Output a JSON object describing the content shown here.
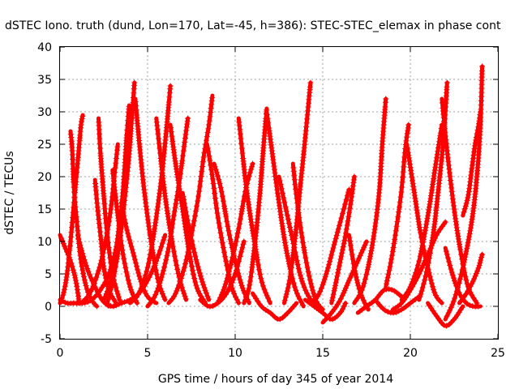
{
  "chart_data": {
    "type": "scatter",
    "title": "dSTEC Iono. truth (dund, Lon=170, Lat=-45, h=386): STEC-STEC_elemax in phase cont",
    "xlabel": "GPS time / hours of day 345 of year 2014",
    "ylabel": "dSTEC  / TECUs",
    "xlim": [
      0,
      25
    ],
    "ylim": [
      -5,
      40
    ],
    "xticks": [
      0,
      5,
      10,
      15,
      20,
      25
    ],
    "yticks": [
      -5,
      0,
      5,
      10,
      15,
      20,
      25,
      30,
      35,
      40
    ],
    "grid": true,
    "marker": "+",
    "color": "#ff0000",
    "series": [
      {
        "x": [
          0.0,
          0.3,
          0.6,
          0.9,
          1.1
        ],
        "y": [
          11.0,
          9.0,
          7.0,
          4.0,
          0.5
        ]
      },
      {
        "x": [
          0.0,
          0.2,
          0.4,
          0.6,
          0.8,
          1.0,
          1.1,
          1.2,
          1.3
        ],
        "y": [
          0.5,
          2.0,
          5.0,
          10.0,
          16.0,
          22.0,
          25.0,
          28.0,
          29.5
        ]
      },
      {
        "x": [
          0.6,
          0.7,
          0.8,
          1.0,
          1.2,
          1.5,
          1.8,
          2.1
        ],
        "y": [
          27.0,
          24.0,
          18.0,
          12.0,
          7.0,
          3.0,
          1.0,
          0.0
        ]
      },
      {
        "x": [
          0.0,
          0.4,
          0.8,
          1.3,
          1.8,
          2.3,
          2.8,
          3.2,
          3.4
        ],
        "y": [
          1.0,
          0.5,
          0.5,
          0.5,
          1.0,
          2.5,
          5.0,
          9.0,
          13.0
        ]
      },
      {
        "x": [
          1.0,
          1.3,
          1.6,
          2.0,
          2.4,
          2.8
        ],
        "y": [
          11.0,
          8.0,
          5.5,
          3.0,
          1.0,
          0.0
        ]
      },
      {
        "x": [
          2.0,
          2.15,
          2.35,
          2.5,
          2.8,
          3.2
        ],
        "y": [
          19.5,
          15.0,
          10.0,
          6.0,
          2.5,
          0.5
        ]
      },
      {
        "x": [
          2.2,
          2.3,
          2.5,
          2.7,
          3.0,
          3.4
        ],
        "y": [
          29.0,
          24.0,
          17.0,
          11.0,
          5.0,
          1.0
        ]
      },
      {
        "x": [
          1.2,
          1.7,
          2.2,
          2.6,
          2.9,
          3.1,
          3.3
        ],
        "y": [
          0.5,
          2.0,
          5.5,
          10.0,
          15.0,
          20.0,
          25.0
        ]
      },
      {
        "x": [
          2.5,
          2.9,
          3.3,
          3.6,
          3.8,
          3.95
        ],
        "y": [
          1.0,
          4.0,
          10.0,
          18.0,
          26.0,
          31.0
        ]
      },
      {
        "x": [
          3.0,
          3.3,
          3.6,
          4.0,
          4.4
        ],
        "y": [
          21.0,
          14.0,
          8.0,
          3.0,
          0.5
        ]
      },
      {
        "x": [
          2.7,
          3.1,
          3.5,
          3.9,
          4.1,
          4.25
        ],
        "y": [
          0.5,
          5.0,
          12.0,
          22.0,
          29.0,
          34.5
        ]
      },
      {
        "x": [
          2.6,
          3.0,
          3.5,
          4.0,
          4.5,
          5.0,
          5.5,
          6.0
        ],
        "y": [
          0.5,
          0.0,
          0.5,
          1.0,
          2.0,
          4.0,
          7.0,
          11.0
        ]
      },
      {
        "x": [
          3.5,
          3.8,
          4.2,
          4.6,
          5.0,
          5.5
        ],
        "y": [
          16.0,
          12.0,
          8.0,
          4.0,
          1.5,
          0.5
        ]
      },
      {
        "x": [
          4.3,
          4.5,
          4.8,
          5.2,
          5.6,
          6.0
        ],
        "y": [
          32.0,
          26.0,
          18.0,
          10.0,
          4.0,
          1.0
        ]
      },
      {
        "x": [
          4.0,
          4.5,
          5.0,
          5.4,
          5.8,
          6.1,
          6.3
        ],
        "y": [
          0.5,
          2.0,
          6.0,
          12.0,
          20.0,
          28.0,
          34.0
        ]
      },
      {
        "x": [
          5.5,
          5.7,
          6.0,
          6.4,
          6.8,
          7.2
        ],
        "y": [
          29.0,
          24.0,
          17.0,
          10.0,
          4.5,
          1.0
        ]
      },
      {
        "x": [
          5.0,
          5.4,
          5.8,
          6.2,
          6.5,
          6.8,
          7.1,
          7.3
        ],
        "y": [
          0.0,
          1.5,
          4.5,
          9.0,
          14.0,
          19.0,
          25.0,
          29.0
        ]
      },
      {
        "x": [
          6.3,
          6.6,
          7.0,
          7.4,
          7.8,
          8.3
        ],
        "y": [
          28.0,
          22.0,
          15.0,
          8.0,
          3.0,
          0.5
        ]
      },
      {
        "x": [
          6.2,
          6.6,
          7.1,
          7.5,
          7.9,
          8.2,
          8.5,
          8.7
        ],
        "y": [
          0.5,
          2.0,
          6.0,
          11.0,
          17.0,
          23.0,
          28.0,
          32.5
        ]
      },
      {
        "x": [
          7.0,
          7.3,
          7.7,
          8.1,
          8.5
        ],
        "y": [
          17.5,
          13.0,
          8.0,
          4.0,
          1.0
        ]
      },
      {
        "x": [
          8.0,
          8.5,
          9.0,
          9.5,
          10.0,
          10.5
        ],
        "y": [
          1.0,
          0.0,
          0.5,
          2.0,
          5.0,
          10.0
        ]
      },
      {
        "x": [
          8.4,
          8.7,
          9.0,
          9.4,
          9.8,
          10.2
        ],
        "y": [
          25.0,
          20.0,
          14.0,
          8.0,
          3.0,
          0.5
        ]
      },
      {
        "x": [
          8.8,
          9.2,
          9.6,
          10.0,
          10.4,
          10.8
        ],
        "y": [
          22.0,
          18.0,
          12.0,
          7.0,
          3.0,
          0.5
        ]
      },
      {
        "x": [
          9.0,
          9.4,
          9.8,
          10.2,
          10.6,
          11.0
        ],
        "y": [
          0.5,
          3.0,
          7.0,
          12.0,
          18.0,
          22.0
        ]
      },
      {
        "x": [
          10.2,
          10.4,
          10.7,
          11.1,
          11.5,
          12.0
        ],
        "y": [
          29.0,
          24.0,
          17.0,
          10.0,
          4.0,
          0.5
        ]
      },
      {
        "x": [
          10.5,
          10.8,
          11.1,
          11.4,
          11.6,
          11.8
        ],
        "y": [
          0.5,
          3.0,
          9.0,
          17.0,
          24.0,
          30.5
        ]
      },
      {
        "x": [
          11.8,
          12.1,
          12.5,
          12.9,
          13.4,
          13.9
        ],
        "y": [
          30.0,
          24.0,
          16.0,
          9.0,
          3.0,
          0.0
        ]
      },
      {
        "x": [
          11.0,
          11.5,
          12.0,
          12.5,
          13.0,
          13.5
        ],
        "y": [
          2.0,
          0.0,
          -1.0,
          -2.0,
          -1.0,
          0.5
        ]
      },
      {
        "x": [
          12.5,
          12.9,
          13.3,
          13.7,
          14.1,
          14.6
        ],
        "y": [
          20.0,
          15.0,
          10.0,
          5.0,
          2.0,
          0.0
        ]
      },
      {
        "x": [
          12.8,
          13.1,
          13.4,
          13.7,
          14.0,
          14.3
        ],
        "y": [
          0.5,
          4.0,
          10.0,
          18.0,
          26.0,
          34.5
        ]
      },
      {
        "x": [
          13.3,
          13.5,
          13.8,
          14.2,
          14.6,
          15.0
        ],
        "y": [
          22.0,
          17.0,
          11.0,
          5.0,
          1.0,
          -0.5
        ]
      },
      {
        "x": [
          14.0,
          14.5,
          15.0,
          15.5,
          16.0,
          16.3
        ],
        "y": [
          1.0,
          0.0,
          -1.0,
          -2.0,
          -1.0,
          0.5
        ]
      },
      {
        "x": [
          14.4,
          14.8,
          15.2,
          15.6,
          16.0,
          16.5
        ],
        "y": [
          0.5,
          2.0,
          5.0,
          9.0,
          13.0,
          18.0
        ]
      },
      {
        "x": [
          15.5,
          15.7,
          16.0,
          16.3,
          16.6,
          16.8
        ],
        "y": [
          0.5,
          3.0,
          7.0,
          11.0,
          16.0,
          20.0
        ]
      },
      {
        "x": [
          15.0,
          15.5,
          16.0,
          16.5,
          17.0,
          17.5
        ],
        "y": [
          -2.5,
          -1.0,
          1.0,
          4.0,
          7.0,
          10.0
        ]
      },
      {
        "x": [
          16.5,
          16.8,
          17.1,
          17.4,
          17.6
        ],
        "y": [
          11.0,
          6.0,
          2.5,
          0.5,
          -0.5
        ]
      },
      {
        "x": [
          16.8,
          17.3,
          17.8,
          18.2,
          18.4,
          18.6
        ],
        "y": [
          0.5,
          3.0,
          9.0,
          17.0,
          25.0,
          32.0
        ]
      },
      {
        "x": [
          17.0,
          17.5,
          18.0,
          18.5,
          19.0,
          19.5
        ],
        "y": [
          -1.0,
          0.0,
          1.0,
          2.5,
          2.5,
          1.5
        ]
      },
      {
        "x": [
          18.0,
          18.5,
          19.0,
          19.5,
          20.0,
          20.5
        ],
        "y": [
          1.0,
          -0.5,
          -1.0,
          -0.5,
          0.5,
          1.5
        ]
      },
      {
        "x": [
          18.6,
          18.9,
          19.2,
          19.5,
          19.7,
          19.9
        ],
        "y": [
          3.0,
          7.0,
          12.0,
          18.0,
          24.0,
          28.0
        ]
      },
      {
        "x": [
          19.8,
          20.2,
          20.6,
          21.0,
          21.4,
          21.8
        ],
        "y": [
          25.0,
          18.0,
          11.0,
          6.0,
          2.0,
          0.5
        ]
      },
      {
        "x": [
          19.0,
          19.5,
          20.0,
          20.5,
          21.0,
          21.5,
          22.0
        ],
        "y": [
          -0.5,
          0.5,
          2.5,
          5.0,
          8.0,
          11.0,
          13.0
        ]
      },
      {
        "x": [
          19.5,
          20.0,
          20.5,
          21.0,
          21.4,
          21.8
        ],
        "y": [
          1.0,
          3.0,
          7.0,
          14.0,
          21.0,
          28.0
        ]
      },
      {
        "x": [
          20.5,
          20.9,
          21.3,
          21.6,
          21.9,
          22.1
        ],
        "y": [
          1.0,
          5.0,
          11.0,
          18.0,
          26.0,
          34.5
        ]
      },
      {
        "x": [
          21.0,
          21.5,
          22.0,
          22.5,
          23.0
        ],
        "y": [
          0.5,
          -1.5,
          -3.0,
          -2.0,
          0.0
        ]
      },
      {
        "x": [
          21.8,
          22.1,
          22.5,
          22.9,
          23.3,
          23.8
        ],
        "y": [
          32.0,
          24.0,
          15.0,
          8.0,
          3.0,
          0.5
        ]
      },
      {
        "x": [
          22.0,
          22.4,
          22.8,
          23.2,
          23.6,
          24.0
        ],
        "y": [
          9.0,
          5.0,
          2.0,
          0.5,
          0.0,
          0.0
        ]
      },
      {
        "x": [
          22.0,
          22.5,
          23.0,
          23.5,
          23.8,
          24.0,
          24.1
        ],
        "y": [
          -2.0,
          1.0,
          6.0,
          13.0,
          20.0,
          28.0,
          37.0
        ]
      },
      {
        "x": [
          23.0,
          23.3,
          23.5,
          23.7,
          23.9,
          24.0
        ],
        "y": [
          14.0,
          17.0,
          21.0,
          25.0,
          28.0,
          30.0
        ]
      },
      {
        "x": [
          22.8,
          23.2,
          23.6,
          23.9,
          24.0,
          24.1
        ],
        "y": [
          0.5,
          2.0,
          4.0,
          6.0,
          7.0,
          8.0
        ]
      }
    ]
  }
}
